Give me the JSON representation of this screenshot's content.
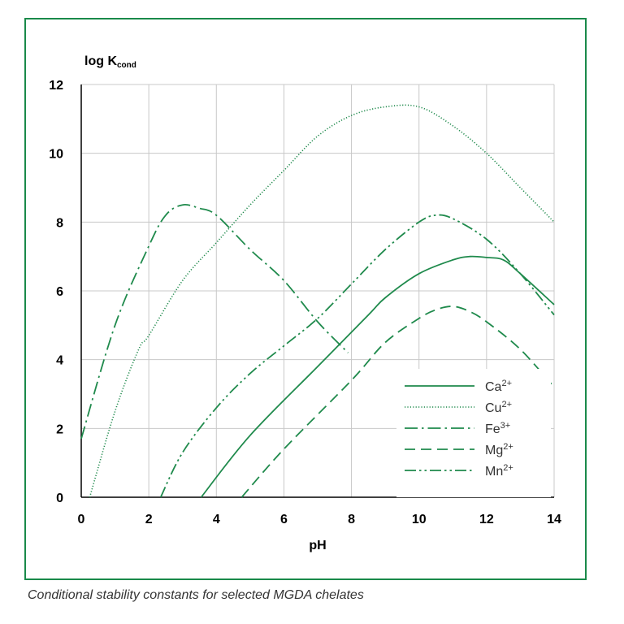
{
  "caption": "Conditional stability constants for selected MGDA chelates",
  "colors": {
    "frame": "#1a8a4a",
    "line": "#1f8a4c",
    "grid": "#c8c8c8",
    "axis": "#000000"
  },
  "chart_data": {
    "type": "line",
    "title": "",
    "ylabel_main": "log K",
    "ylabel_sub": "cond",
    "xlabel": "pH",
    "xlim": [
      0,
      14
    ],
    "ylim": [
      0,
      12
    ],
    "xticks": [
      0,
      2,
      4,
      6,
      8,
      10,
      12,
      14
    ],
    "yticks": [
      0,
      2,
      4,
      6,
      8,
      10,
      12
    ],
    "grid": true,
    "legend_position": "bottom-right",
    "series": [
      {
        "name": "Ca",
        "sup": "2+",
        "dash": "solid",
        "x": [
          3.55,
          5,
          7,
          8.5,
          9,
          10,
          11,
          11.5,
          12,
          12.5,
          13,
          14
        ],
        "y": [
          0,
          1.8,
          3.8,
          5.3,
          5.8,
          6.5,
          6.9,
          7.0,
          6.97,
          6.9,
          6.5,
          5.6
        ]
      },
      {
        "name": "Cu",
        "sup": "2+",
        "dash": "dotted",
        "x": [
          0.25,
          1,
          1.7,
          2,
          3,
          4,
          5,
          6,
          7,
          8,
          9,
          10,
          11,
          12,
          13,
          14
        ],
        "y": [
          0,
          2.5,
          4.3,
          4.7,
          6.3,
          7.4,
          8.5,
          9.5,
          10.5,
          11.1,
          11.35,
          11.35,
          10.8,
          10.0,
          9.0,
          8.0
        ]
      },
      {
        "name": "Fe",
        "sup": "3+",
        "dash": "dashdot",
        "x": [
          0,
          1,
          2,
          2.5,
          3,
          3.5,
          4,
          5,
          6,
          7,
          7.9
        ],
        "y": [
          1.7,
          5.0,
          7.3,
          8.2,
          8.5,
          8.4,
          8.2,
          7.2,
          6.3,
          5.1,
          4.2
        ]
      },
      {
        "name": "Mg",
        "sup": "2+",
        "dash": "dashed",
        "x": [
          4.75,
          6,
          8,
          9,
          10,
          10.5,
          11,
          11.5,
          12,
          13,
          14
        ],
        "y": [
          0,
          1.4,
          3.4,
          4.5,
          5.2,
          5.45,
          5.55,
          5.4,
          5.1,
          4.3,
          3.2
        ]
      },
      {
        "name": "Mn",
        "sup": "2+",
        "dash": "dashdotdot",
        "x": [
          2.35,
          3,
          4,
          5,
          6,
          7,
          8,
          9,
          10,
          10.5,
          11,
          12,
          13,
          14
        ],
        "y": [
          0,
          1.3,
          2.6,
          3.6,
          4.4,
          5.2,
          6.2,
          7.2,
          8.0,
          8.2,
          8.1,
          7.5,
          6.5,
          5.3
        ]
      }
    ]
  }
}
